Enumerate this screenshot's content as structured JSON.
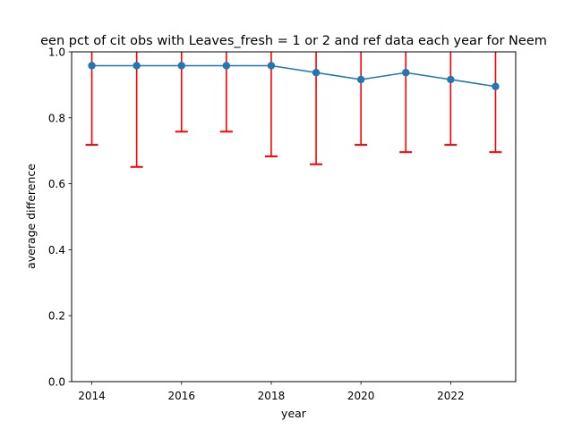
{
  "chart_data": {
    "type": "line",
    "title": "een pct of cit obs with Leaves_fresh = 1 or 2 and ref data each year for Neem",
    "xlabel": "year",
    "ylabel": "average difference",
    "xlim": [
      2013.55,
      2023.45
    ],
    "ylim": [
      0.0,
      1.0
    ],
    "x_ticks": [
      2014,
      2016,
      2018,
      2020,
      2022
    ],
    "x_tick_labels": [
      "2014",
      "2016",
      "2018",
      "2020",
      "2022"
    ],
    "y_ticks": [
      0.0,
      0.2,
      0.4,
      0.6,
      0.8,
      1.0
    ],
    "y_tick_labels": [
      "0.0",
      "0.2",
      "0.4",
      "0.6",
      "0.8",
      "1.0"
    ],
    "grid": false,
    "legend": "none",
    "series": [
      {
        "x": [
          2014,
          2015,
          2016,
          2017,
          2018,
          2019,
          2020,
          2021,
          2022,
          2023
        ],
        "values": [
          0.958,
          0.958,
          0.958,
          0.958,
          0.958,
          0.937,
          0.916,
          0.937,
          0.916,
          0.895
        ],
        "error_lower": [
          0.718,
          0.651,
          0.758,
          0.758,
          0.683,
          0.659,
          0.718,
          0.696,
          0.718,
          0.696
        ],
        "error_upper": [
          1.2,
          1.2,
          1.2,
          1.2,
          1.2,
          1.2,
          1.2,
          1.2,
          1.2,
          1.2
        ],
        "color": "#1f77b4",
        "error_color": "#ff0000",
        "marker": "circle"
      }
    ]
  }
}
